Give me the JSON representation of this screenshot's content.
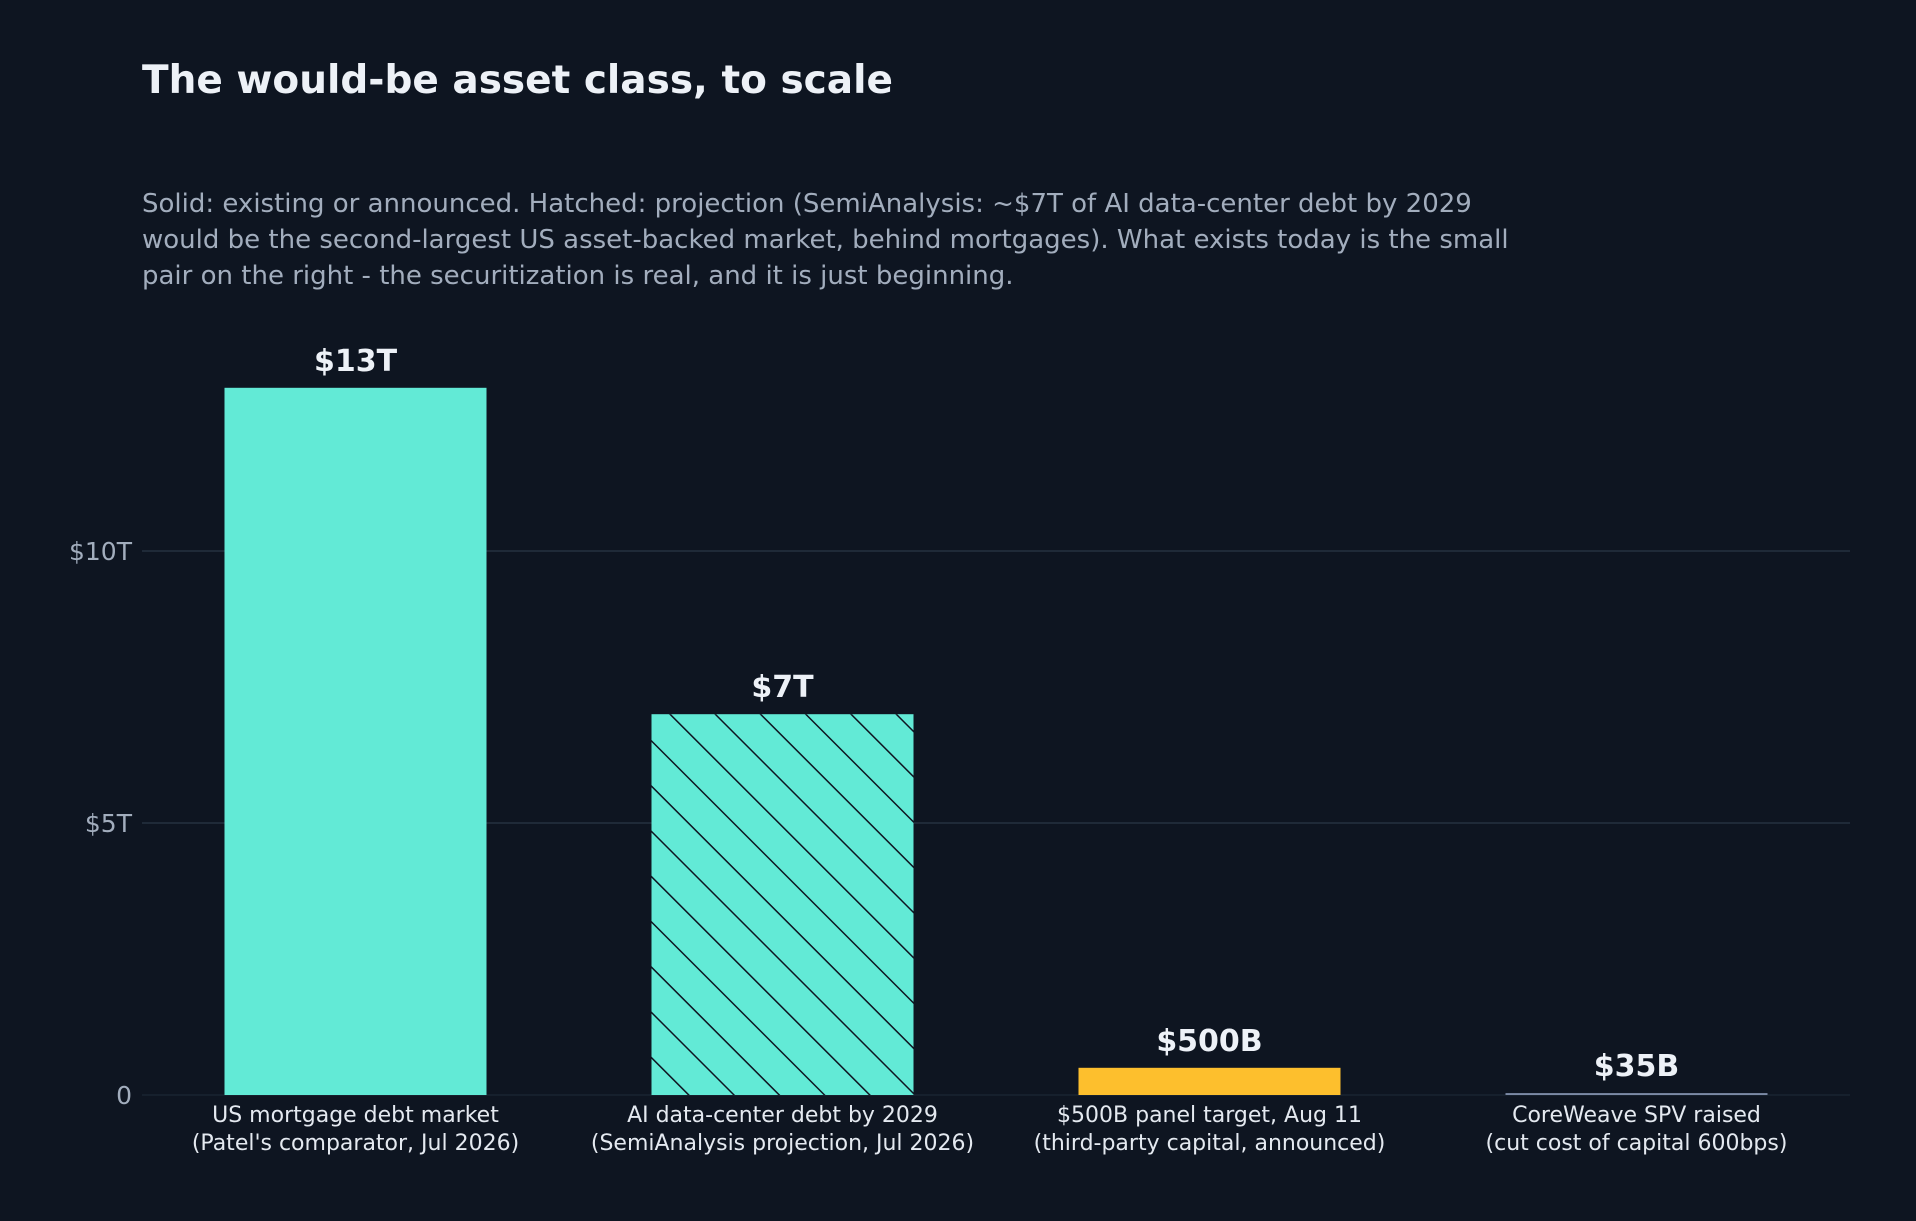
{
  "header": {
    "title": "The would-be asset class, to scale",
    "subtitle_lines": [
      "Solid: existing or announced. Hatched: projection (SemiAnalysis: ~$7T of AI data-center debt by 2029",
      "would be the second-largest US asset-backed market, behind mortgages). What exists today is the small",
      "pair on the right - the securitization is real, and it is just beginning."
    ]
  },
  "chart_data": {
    "type": "bar",
    "title": "The would-be asset class, to scale",
    "xlabel": "",
    "ylabel": "",
    "ylim": [
      0,
      14.2
    ],
    "grid": true,
    "y_ticks": [
      {
        "value": 0,
        "label": "0"
      },
      {
        "value": 5,
        "label": "$5T"
      },
      {
        "value": 10,
        "label": "$10T"
      }
    ],
    "bars": [
      {
        "category_lines": [
          "US mortgage debt market",
          "(Patel's comparator, Jul 2026)"
        ],
        "value": 13,
        "value_label": "$13T",
        "color": "#62ead6",
        "hatched": false
      },
      {
        "category_lines": [
          "AI data-center debt by 2029",
          "(SemiAnalysis projection, Jul 2026)"
        ],
        "value": 7,
        "value_label": "$7T",
        "color": "#62ead6",
        "hatched": true
      },
      {
        "category_lines": [
          "$500B panel target, Aug 11",
          "(third-party capital, announced)"
        ],
        "value": 0.5,
        "value_label": "$500B",
        "color": "#fdbf2d",
        "hatched": false
      },
      {
        "category_lines": [
          "CoreWeave SPV raised",
          "(cut cost of capital 600bps)"
        ],
        "value": 0.035,
        "value_label": "$35B",
        "color": "#7c8aa6",
        "hatched": false
      }
    ]
  },
  "colors": {
    "background": "#0e1521",
    "grid": "#1f2a38",
    "hatch_line": "#0e1521"
  }
}
